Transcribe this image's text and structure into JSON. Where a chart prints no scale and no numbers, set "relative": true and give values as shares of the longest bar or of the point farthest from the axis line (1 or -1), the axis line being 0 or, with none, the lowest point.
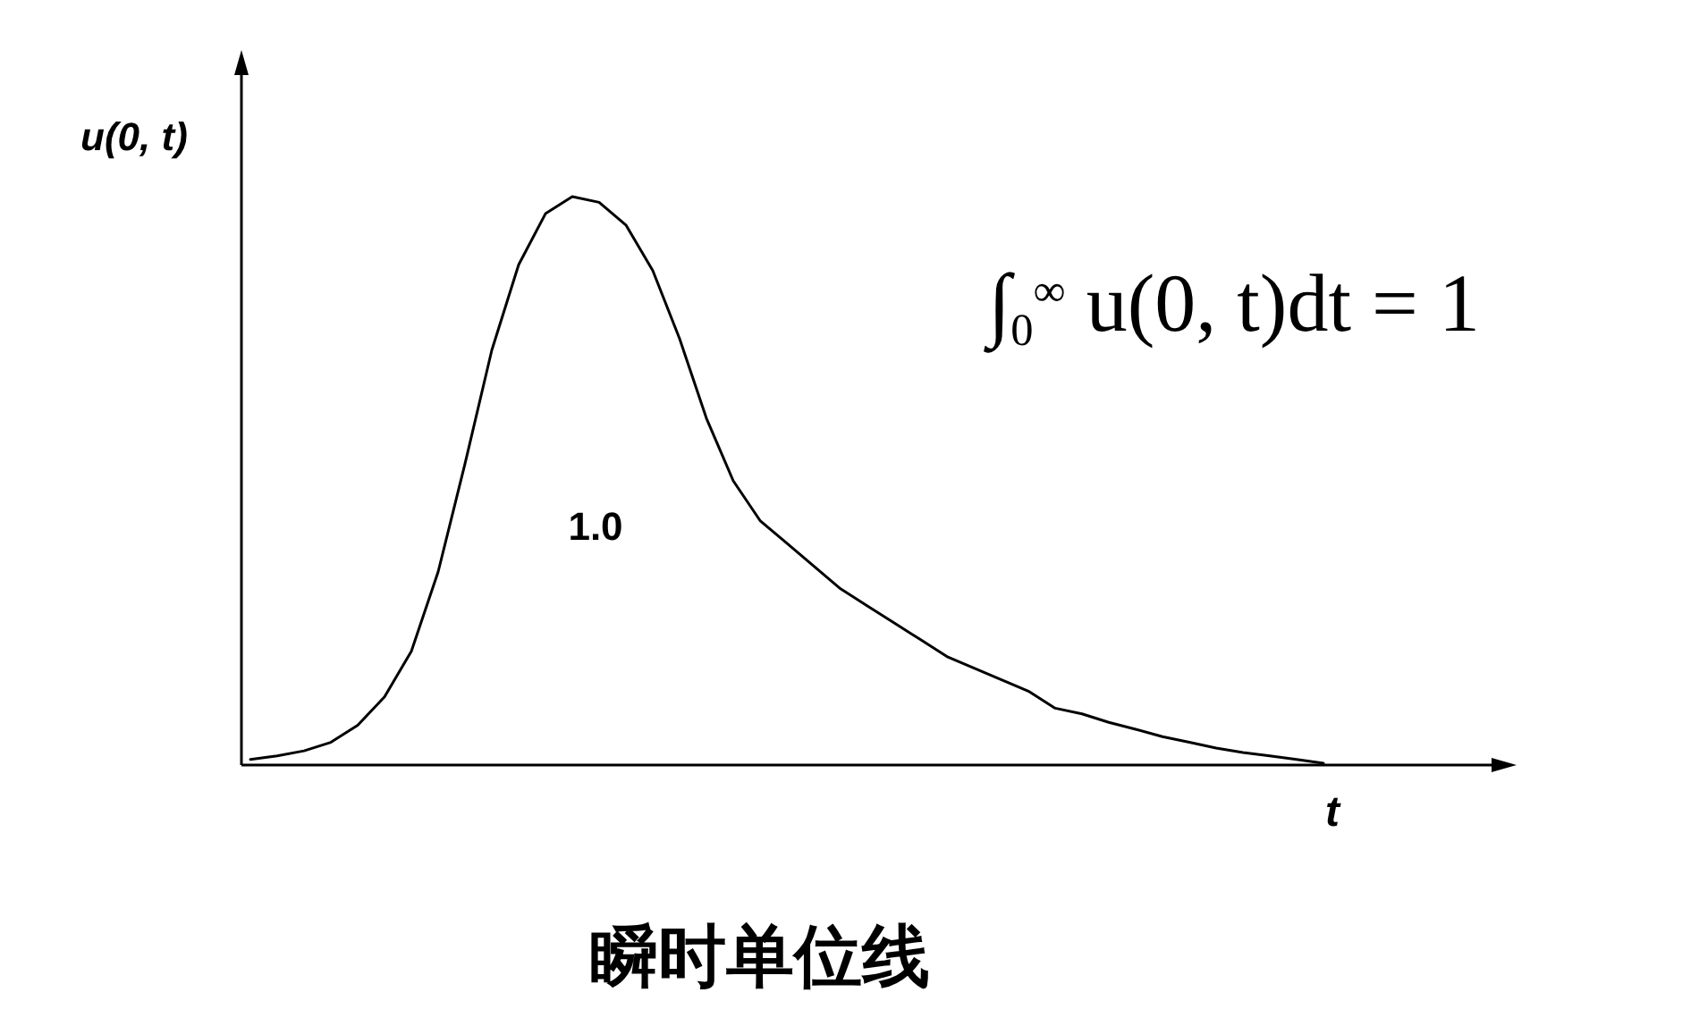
{
  "chart_data": {
    "type": "line",
    "title": "瞬时单位线",
    "xlabel": "t",
    "ylabel": "u(0, t)",
    "relative": true,
    "annotations": [
      "∫$_{0}$$^{∞}$ u(0, t)dt = 1",
      "1.0"
    ],
    "categories": [
      null,
      null,
      null,
      null,
      null,
      null,
      null,
      null,
      null,
      null,
      null,
      null,
      null,
      null,
      null,
      null,
      null,
      null,
      null,
      null,
      null,
      null,
      null,
      null,
      null,
      null,
      null,
      null,
      null,
      null,
      null,
      null,
      null,
      null,
      null,
      null,
      null,
      null,
      null,
      null,
      null
    ],
    "series": [
      {
        "color": "#000000",
        "values": [
          0.01,
          0.016,
          0.025,
          0.04,
          0.07,
          0.12,
          0.2,
          0.34,
          0.53,
          0.73,
          0.88,
          0.97,
          1.0,
          0.99,
          0.95,
          0.87,
          0.75,
          0.61,
          0.5,
          0.43,
          0.39,
          0.35,
          0.31,
          0.28,
          0.25,
          0.22,
          0.19,
          0.17,
          0.15,
          0.13,
          0.1,
          0.09,
          0.075,
          0.063,
          0.05,
          0.04,
          0.03,
          0.022,
          0.016,
          0.01,
          0.003
        ]
      }
    ]
  }
}
